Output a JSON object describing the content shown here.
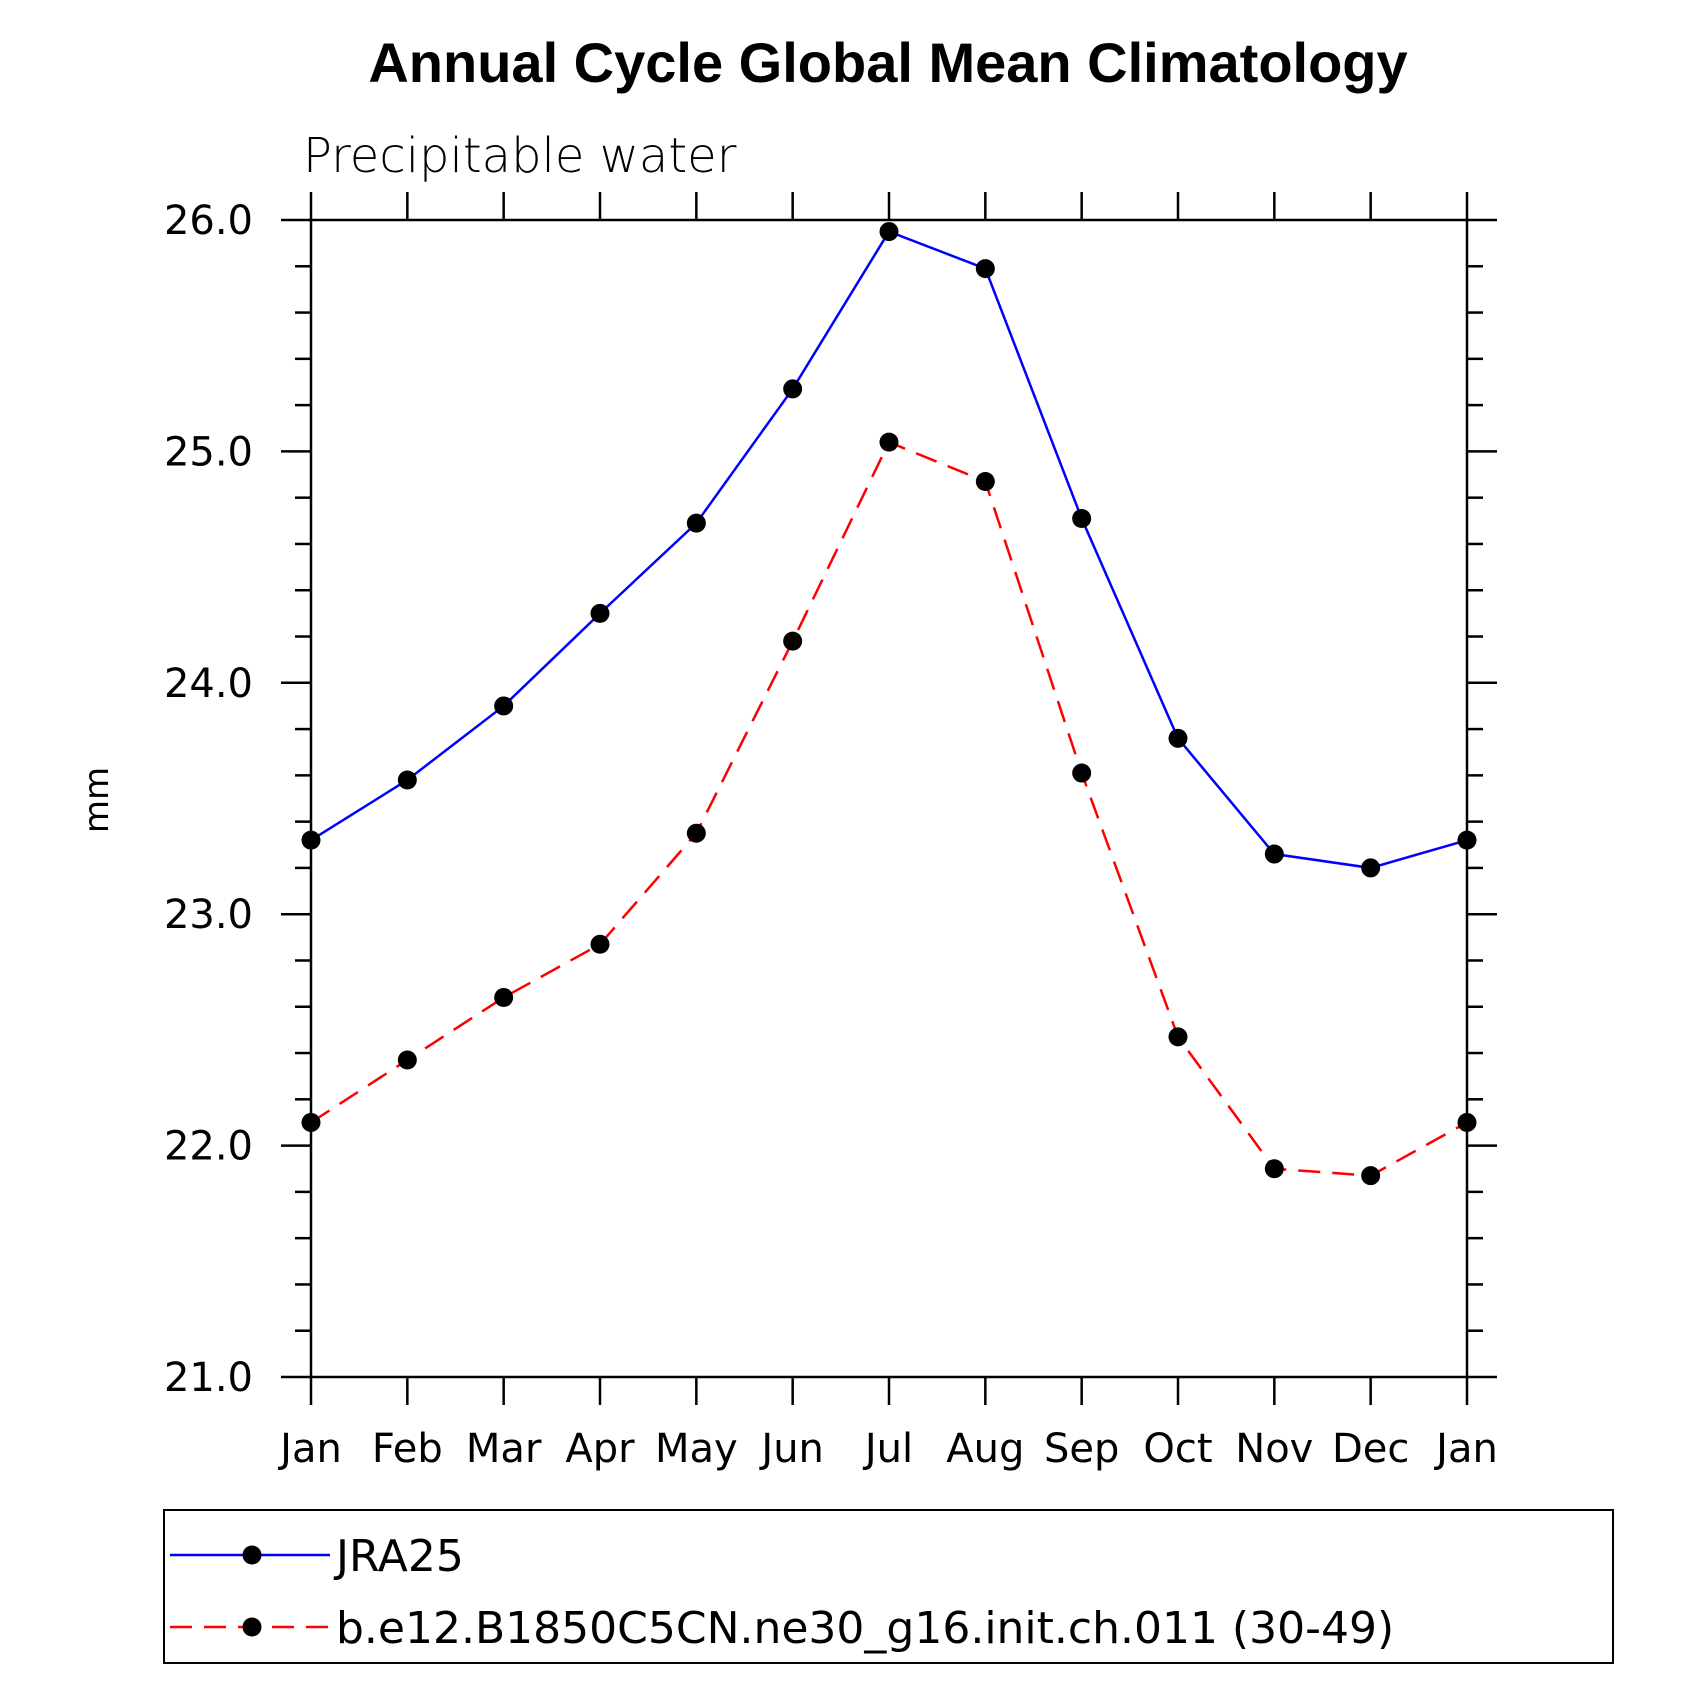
{
  "chart_data": {
    "type": "line",
    "title": "Annual Cycle Global Mean Climatology",
    "subtitle": "Precipitable water",
    "ylabel": "mm",
    "xlabel": "",
    "categories": [
      "Jan",
      "Feb",
      "Mar",
      "Apr",
      "May",
      "Jun",
      "Jul",
      "Aug",
      "Sep",
      "Oct",
      "Nov",
      "Dec",
      "Jan"
    ],
    "ylim": [
      21.0,
      26.0
    ],
    "yticks": [
      "21.0",
      "22.0",
      "23.0",
      "24.0",
      "25.0",
      "26.0"
    ],
    "grid": false,
    "legend_position": "bottom",
    "series": [
      {
        "name": "JRA25",
        "color": "#0000ff",
        "line_style": "solid",
        "marker": "filled-circle",
        "values": [
          23.32,
          23.58,
          23.9,
          24.3,
          24.69,
          25.27,
          25.95,
          25.79,
          24.71,
          23.76,
          23.26,
          23.2,
          23.32
        ]
      },
      {
        "name": "b.e12.B1850C5CN.ne30_g16.init.ch.011 (30-49)",
        "color": "#ff0000",
        "line_style": "dashed",
        "marker": "filled-circle",
        "values": [
          22.1,
          22.37,
          22.64,
          22.87,
          23.35,
          24.18,
          25.04,
          24.87,
          23.61,
          22.47,
          21.9,
          21.87,
          22.1
        ]
      }
    ]
  }
}
